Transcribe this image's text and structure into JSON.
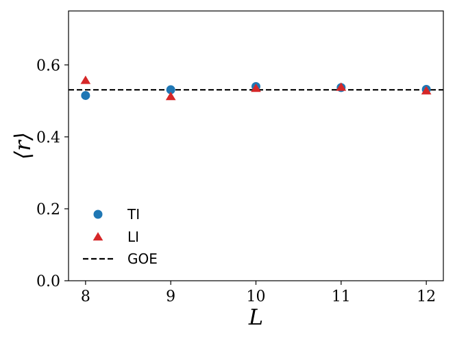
{
  "chart_data": {
    "type": "scatter",
    "title": "",
    "xlabel": "L",
    "ylabel": "⟨r⟩",
    "xlim": [
      7.8,
      12.2
    ],
    "ylim": [
      0.0,
      0.75
    ],
    "xticks": [
      8,
      9,
      10,
      11,
      12
    ],
    "yticks": [
      0.0,
      0.2,
      0.4,
      0.6
    ],
    "xtick_labels": [
      "8",
      "9",
      "10",
      "11",
      "12"
    ],
    "ytick_labels": [
      "0.0",
      "0.2",
      "0.4",
      "0.6"
    ],
    "grid": false,
    "legend_position": "lower-left",
    "series": [
      {
        "name": "TI",
        "marker": "circle",
        "color": "#1f77b4",
        "x": [
          8,
          9,
          10,
          11,
          12
        ],
        "y": [
          0.515,
          0.531,
          0.54,
          0.537,
          0.532
        ]
      },
      {
        "name": "LI",
        "marker": "triangle",
        "color": "#d62728",
        "x": [
          8,
          9,
          10,
          11,
          12
        ],
        "y": [
          0.557,
          0.512,
          0.535,
          0.538,
          0.528
        ]
      }
    ],
    "reference_line": {
      "name": "GOE",
      "y": 0.5307,
      "style": "dashed",
      "color": "#000000"
    }
  }
}
